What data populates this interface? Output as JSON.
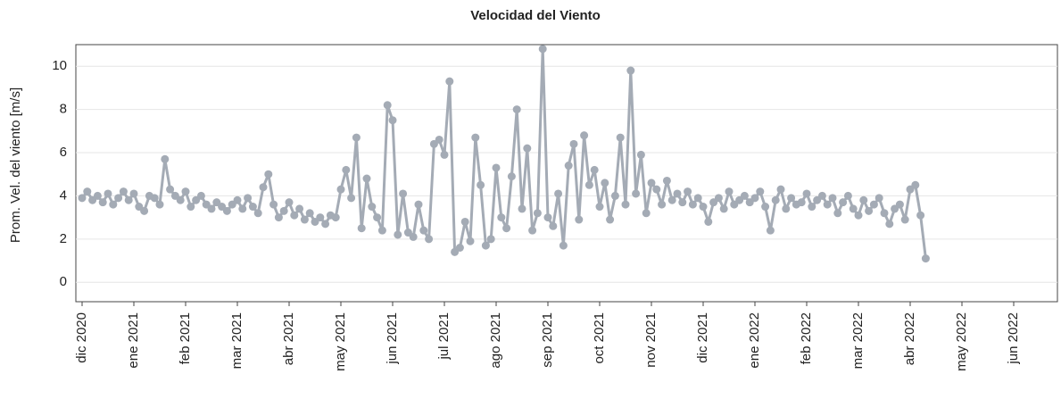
{
  "chart_data": {
    "type": "line",
    "title": "Velocidad del Viento",
    "y_label": "Prom. Vel. del viento [m/s]",
    "color": "#a4abb5",
    "grid": true,
    "ylim": [
      -0.9,
      11
    ],
    "yticks": [
      0,
      2,
      4,
      6,
      8,
      10
    ],
    "categories": [
      "dic 2020",
      null,
      null,
      null,
      null,
      null,
      null,
      null,
      null,
      null,
      "ene 2021",
      null,
      null,
      null,
      null,
      null,
      null,
      null,
      null,
      null,
      "feb 2021",
      null,
      null,
      null,
      null,
      null,
      null,
      null,
      null,
      null,
      "mar 2021",
      null,
      null,
      null,
      null,
      null,
      null,
      null,
      null,
      null,
      "abr 2021",
      null,
      null,
      null,
      null,
      null,
      null,
      null,
      null,
      null,
      "may 2021",
      null,
      null,
      null,
      null,
      null,
      null,
      null,
      null,
      null,
      "jun 2021",
      null,
      null,
      null,
      null,
      null,
      null,
      null,
      null,
      null,
      "jul 2021",
      null,
      null,
      null,
      null,
      null,
      null,
      null,
      null,
      null,
      "ago 2021",
      null,
      null,
      null,
      null,
      null,
      null,
      null,
      null,
      null,
      "sep 2021",
      null,
      null,
      null,
      null,
      null,
      null,
      null,
      null,
      null,
      "oct 2021",
      null,
      null,
      null,
      null,
      null,
      null,
      null,
      null,
      null,
      "nov 2021",
      null,
      null,
      null,
      null,
      null,
      null,
      null,
      null,
      null,
      "dic 2021",
      null,
      null,
      null,
      null,
      null,
      null,
      null,
      null,
      null,
      "ene 2022",
      null,
      null,
      null,
      null,
      null,
      null,
      null,
      null,
      null,
      "feb 2022",
      null,
      null,
      null,
      null,
      null,
      null,
      null,
      null,
      null,
      "mar 2022",
      null,
      null,
      null,
      null,
      null,
      null,
      null,
      null,
      null,
      "abr 2022",
      null,
      null,
      null,
      null,
      null,
      null,
      null,
      null,
      null,
      "may 2022",
      null,
      null,
      null,
      null,
      null,
      null,
      null,
      null,
      null,
      "jun 2022",
      null,
      null,
      null,
      null,
      null,
      null,
      null,
      null,
      null,
      null,
      null,
      null,
      null,
      null,
      null,
      null,
      null,
      null
    ],
    "values": [
      3.9,
      4.2,
      3.8,
      4.0,
      3.7,
      4.1,
      3.6,
      3.9,
      4.2,
      3.8,
      4.1,
      3.5,
      3.3,
      4.0,
      3.9,
      3.6,
      5.7,
      4.3,
      4.0,
      3.8,
      4.2,
      3.5,
      3.8,
      4.0,
      3.6,
      3.4,
      3.7,
      3.5,
      3.3,
      3.6,
      3.8,
      3.4,
      3.9,
      3.5,
      3.2,
      4.4,
      5.0,
      3.6,
      3.0,
      3.3,
      3.7,
      3.1,
      3.4,
      2.9,
      3.2,
      2.8,
      3.0,
      2.7,
      3.1,
      3.0,
      4.3,
      5.2,
      3.9,
      6.7,
      2.5,
      4.8,
      3.5,
      3.0,
      2.4,
      8.2,
      7.5,
      2.2,
      4.1,
      2.3,
      2.1,
      3.6,
      2.4,
      2.0,
      6.4,
      6.6,
      5.9,
      9.3,
      1.4,
      1.6,
      2.8,
      1.9,
      6.7,
      4.5,
      1.7,
      2.0,
      5.3,
      3.0,
      2.5,
      4.9,
      8.0,
      3.4,
      6.2,
      2.4,
      3.2,
      10.8,
      3.0,
      2.6,
      4.1,
      1.7,
      5.4,
      6.4,
      2.9,
      6.8,
      4.5,
      5.2,
      3.5,
      4.6,
      2.9,
      4.0,
      6.7,
      3.6,
      9.8,
      4.1,
      5.9,
      3.2,
      4.6,
      4.3,
      3.6,
      4.7,
      3.8,
      4.1,
      3.7,
      4.2,
      3.6,
      3.9,
      3.5,
      2.8,
      3.7,
      3.9,
      3.4,
      4.2,
      3.6,
      3.8,
      4.0,
      3.7,
      3.9,
      4.2,
      3.5,
      2.4,
      3.8,
      4.3,
      3.4,
      3.9,
      3.6,
      3.7,
      4.1,
      3.5,
      3.8,
      4.0,
      3.6,
      3.9,
      3.2,
      3.7,
      4.0,
      3.4,
      3.1,
      3.8,
      3.3,
      3.6,
      3.9,
      3.2,
      2.7,
      3.4,
      3.6,
      2.9,
      4.3,
      4.5,
      3.1,
      1.1,
      null,
      null,
      null,
      null,
      null,
      null,
      null,
      null,
      null,
      null,
      null,
      null,
      null,
      null,
      null,
      null,
      null,
      null,
      null,
      null,
      null,
      null,
      null,
      null,
      null,
      null,
      null,
      null,
      null,
      null,
      null,
      null,
      null,
      null,
      null
    ]
  }
}
